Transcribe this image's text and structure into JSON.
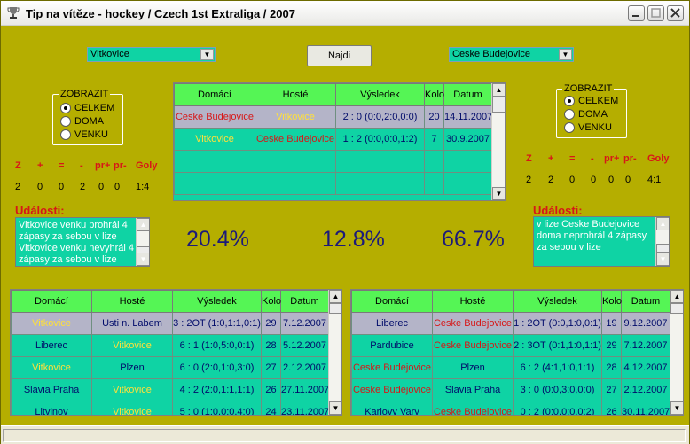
{
  "window": {
    "title": "Tip na vítěze - hockey / Czech 1st Extraliga / 2007"
  },
  "top": {
    "home_team": "Vitkovice",
    "away_team": "Ceske Budejovice",
    "find_label": "Najdi"
  },
  "left_panel": {
    "group_label": "ZOBRAZIT",
    "options": [
      "CELKEM",
      "DOMA",
      "VENKU"
    ],
    "selected": "CELKEM",
    "stat_headers": [
      "Z",
      "+",
      "=",
      "-",
      "pr+",
      "pr-",
      "Goly"
    ],
    "stat_values": [
      "2",
      "0",
      "0",
      "2",
      "0",
      "0",
      "1:4"
    ],
    "events_label": "Události:",
    "events_text": "Vitkovice venku prohrál 4 zápasy za sebou v lize Vitkovice venku nevyhrál 4 zápasy za sebou v lize"
  },
  "right_panel": {
    "group_label": "ZOBRAZIT",
    "options": [
      "CELKEM",
      "DOMA",
      "VENKU"
    ],
    "selected": "CELKEM",
    "stat_headers": [
      "Z",
      "+",
      "=",
      "-",
      "pr+",
      "pr-",
      "Goly"
    ],
    "stat_values": [
      "2",
      "2",
      "0",
      "0",
      "0",
      "0",
      "4:1"
    ],
    "events_label": "Události:",
    "events_text": "v lize Ceske Budejovice doma neprohrál 4 zápasy za sebou v lize"
  },
  "percentages": [
    "20.4%",
    "12.8%",
    "66.7%"
  ],
  "columns": [
    "Domácí",
    "Hosté",
    "Výsledek",
    "Kolo",
    "Datum"
  ],
  "h2h_table": {
    "rows": [
      {
        "home": "Ceske Budejovice",
        "away": "Vitkovice",
        "result": "2 : 0 (0:0,2:0,0:0)",
        "round": "20",
        "date": "14.11.2007",
        "home_color": "red",
        "away_color": "yel"
      },
      {
        "home": "Vitkovice",
        "away": "Ceske Budejovice",
        "result": "1 : 2 (0:0,0:0,1:2)",
        "round": "7",
        "date": "30.9.2007",
        "home_color": "yel",
        "away_color": "red"
      }
    ]
  },
  "home_table": {
    "rows": [
      {
        "home": "Vitkovice",
        "away": "Usti n. Labem",
        "result": "3 : 2OT (1:0,1:1,0:1)",
        "round": "29",
        "date": "7.12.2007",
        "home_color": "yel",
        "away_color": "blk"
      },
      {
        "home": "Liberec",
        "away": "Vitkovice",
        "result": "6 : 1 (1:0,5:0,0:1)",
        "round": "28",
        "date": "5.12.2007",
        "home_color": "blk",
        "away_color": "yel"
      },
      {
        "home": "Vitkovice",
        "away": "Plzen",
        "result": "6 : 0 (2:0,1:0,3:0)",
        "round": "27",
        "date": "2.12.2007",
        "home_color": "yel",
        "away_color": "blk"
      },
      {
        "home": "Slavia Praha",
        "away": "Vitkovice",
        "result": "4 : 2 (2:0,1:1,1:1)",
        "round": "26",
        "date": "27.11.2007",
        "home_color": "blk",
        "away_color": "yel"
      },
      {
        "home": "Litvinov",
        "away": "Vitkovice",
        "result": "5 : 0 (1:0,0:0,4:0)",
        "round": "24",
        "date": "23.11.2007",
        "home_color": "blk",
        "away_color": "yel"
      }
    ]
  },
  "away_table": {
    "rows": [
      {
        "home": "Liberec",
        "away": "Ceske Budejovice",
        "result": "1 : 2OT (0:0,1:0,0:1)",
        "round": "19",
        "date": "9.12.2007",
        "home_color": "blk",
        "away_color": "red"
      },
      {
        "home": "Pardubice",
        "away": "Ceske Budejovice",
        "result": "2 : 3OT (0:1,1:0,1:1)",
        "round": "29",
        "date": "7.12.2007",
        "home_color": "blk",
        "away_color": "red"
      },
      {
        "home": "Ceske Budejovice",
        "away": "Plzen",
        "result": "6 : 2 (4:1,1:0,1:1)",
        "round": "28",
        "date": "4.12.2007",
        "home_color": "red",
        "away_color": "blk"
      },
      {
        "home": "Ceske Budejovice",
        "away": "Slavia Praha",
        "result": "3 : 0 (0:0,3:0,0:0)",
        "round": "27",
        "date": "2.12.2007",
        "home_color": "red",
        "away_color": "blk"
      },
      {
        "home": "Karlovy Vary",
        "away": "Ceske Budejovice",
        "result": "0 : 2 (0:0,0:0,0:2)",
        "round": "26",
        "date": "30.11.2007",
        "home_color": "blk",
        "away_color": "red"
      }
    ]
  },
  "icons": {
    "app": "trophy-icon",
    "minimize": "minimize-icon",
    "maximize": "maximize-icon",
    "close": "close-icon"
  }
}
